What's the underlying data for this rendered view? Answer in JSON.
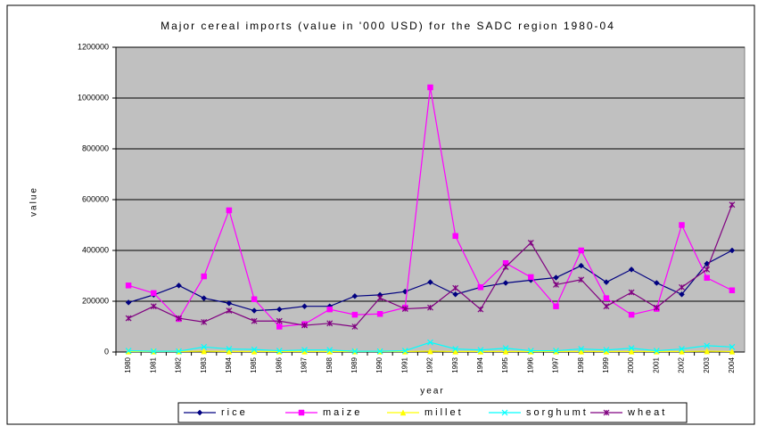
{
  "chart_data": {
    "type": "line",
    "title": "Major cereal imports (value in '000 USD) for the SADC region 1980-04",
    "x_label": "year",
    "y_label": "value",
    "categories": [
      "1980",
      "1981",
      "1982",
      "1983",
      "1984",
      "1985",
      "1986",
      "1987",
      "1988",
      "1989",
      "1990",
      "1991",
      "1992",
      "1993",
      "1994",
      "1995",
      "1996",
      "1997",
      "1998",
      "1999",
      "2000",
      "2001",
      "2002",
      "2003",
      "2004"
    ],
    "series": [
      {
        "name": "rice",
        "color": "#000080",
        "marker": "diamond",
        "values": [
          195000,
          225000,
          262000,
          212000,
          192000,
          163000,
          168000,
          180000,
          180000,
          220000,
          225000,
          238000,
          275000,
          227000,
          255000,
          272000,
          283000,
          293000,
          340000,
          275000,
          325000,
          272000,
          227000,
          348000,
          400000
        ]
      },
      {
        "name": "maize",
        "color": "#ff00ff",
        "marker": "square",
        "values": [
          262000,
          232000,
          130000,
          298000,
          558000,
          208000,
          100000,
          110000,
          168000,
          147000,
          150000,
          175000,
          1042000,
          457000,
          255000,
          350000,
          295000,
          180000,
          400000,
          212000,
          147000,
          170000,
          500000,
          292000,
          243000
        ]
      },
      {
        "name": "millet",
        "color": "#ffff00",
        "marker": "triangle",
        "values": [
          2000,
          2000,
          2000,
          3000,
          2000,
          2000,
          2000,
          2000,
          2000,
          2000,
          2000,
          2000,
          3000,
          2000,
          2000,
          2000,
          2000,
          2000,
          2000,
          2000,
          2000,
          2000,
          2000,
          3000,
          2000
        ]
      },
      {
        "name": "sorghumt",
        "color": "#00ffff",
        "marker": "x",
        "values": [
          5000,
          3000,
          3000,
          20000,
          12000,
          10000,
          5000,
          8000,
          8000,
          3000,
          3000,
          5000,
          38000,
          12000,
          8000,
          15000,
          5000,
          5000,
          12000,
          8000,
          15000,
          5000,
          12000,
          25000,
          20000
        ]
      },
      {
        "name": "wheat",
        "color": "#800080",
        "marker": "star",
        "values": [
          133000,
          180000,
          133000,
          118000,
          163000,
          122000,
          122000,
          105000,
          113000,
          100000,
          213000,
          170000,
          175000,
          252000,
          168000,
          335000,
          430000,
          265000,
          285000,
          180000,
          235000,
          175000,
          255000,
          325000,
          580000
        ]
      }
    ],
    "ylim": [
      0,
      1200000
    ],
    "yticks": [
      0,
      200000,
      400000,
      600000,
      800000,
      1000000,
      1200000
    ],
    "grid": true,
    "legend": "bottom",
    "plot_background": "#c0c0c0"
  }
}
